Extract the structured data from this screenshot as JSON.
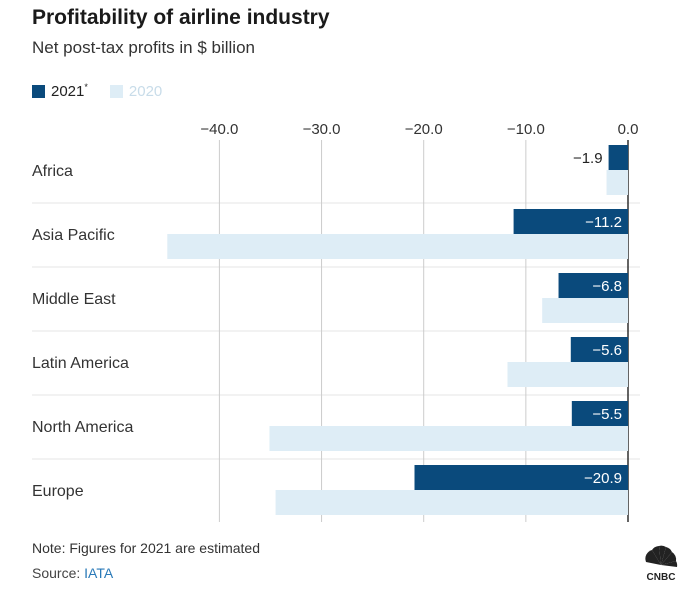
{
  "title": "Profitability of airline industry",
  "subtitle": "Net post-tax profits in $ billion",
  "legend": {
    "series_2021": "2021",
    "series_2021_mark": "*",
    "series_2020": "2020"
  },
  "colors": {
    "series_2021": "#0a4a7c",
    "series_2020": "#deedf6",
    "grid": "#cccccc",
    "legend_2020_text": "#c8dce9",
    "label_text_inside": "#ffffff",
    "label_text_outside": "#222222"
  },
  "chart_data": {
    "type": "bar",
    "orientation": "horizontal",
    "categories": [
      "Africa",
      "Asia Pacific",
      "Middle East",
      "Latin America",
      "North America",
      "Europe"
    ],
    "series": [
      {
        "name": "2021*",
        "values": [
          -1.9,
          -11.2,
          -6.8,
          -5.6,
          -5.5,
          -20.9
        ],
        "labels": [
          "−1.9",
          "−11.2",
          "−6.8",
          "−5.6",
          "−5.5",
          "−20.9"
        ]
      },
      {
        "name": "2020",
        "values": [
          -2.1,
          -45.1,
          -8.4,
          -11.8,
          -35.1,
          -34.5
        ]
      }
    ],
    "xlim": [
      -46.5,
      0
    ],
    "ticks": [
      -40,
      -30,
      -20,
      -10,
      0
    ],
    "tick_labels": [
      "−40.0",
      "−30.0",
      "−20.0",
      "−10.0",
      "0.0"
    ],
    "grid": true
  },
  "footer": {
    "note": "Note: Figures for 2021 are estimated",
    "source_prefix": "Source: ",
    "source_name": "IATA",
    "logo_text": "CNBC"
  }
}
